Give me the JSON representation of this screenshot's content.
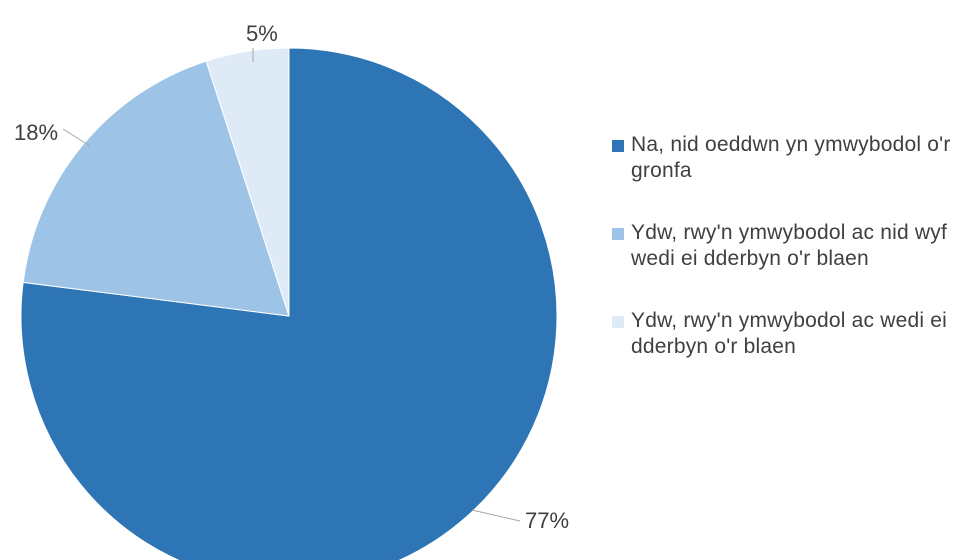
{
  "chart_data": {
    "type": "pie",
    "title": "",
    "start_angle_deg": 0,
    "direction": "clockwise",
    "slices": [
      {
        "label": "Na, nid oeddwn  yn ymwybodol  o'r gronfa",
        "value": 77,
        "display": "77%",
        "color": "#2e75b6"
      },
      {
        "label": "Ydw, rwy'n ymwybodol ac nid wyf wedi ei dderbyn o'r blaen",
        "value": 18,
        "display": "18%",
        "color": "#9dc3e6"
      },
      {
        "label": "Ydw, rwy'n ymwybodol ac wedi ei dderbyn o'r blaen",
        "value": 5,
        "display": "5%",
        "color": "#deebf7"
      }
    ],
    "legend_position": "right"
  }
}
